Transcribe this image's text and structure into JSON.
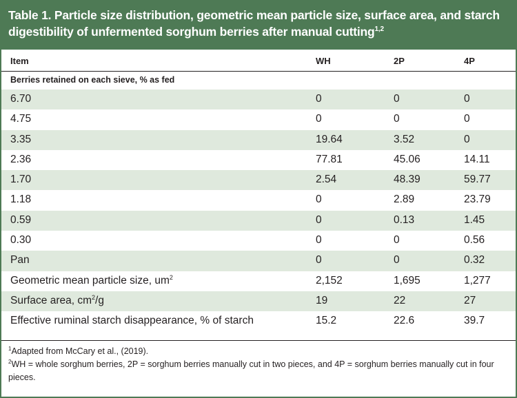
{
  "title": {
    "text": "Table 1. Particle size distribution, geometric mean particle size, surface area, and starch digestibility of unfermented sorghum berries after manual cutting",
    "superscript": "1,2"
  },
  "columns": {
    "item": "Item",
    "wh": "WH",
    "p2": "2P",
    "p4": "4P"
  },
  "section": "Berries retained on each sieve, % as fed",
  "rows": [
    {
      "item": "6.70",
      "wh": "0",
      "p2": "0",
      "p4": "0"
    },
    {
      "item": "4.75",
      "wh": "0",
      "p2": "0",
      "p4": "0"
    },
    {
      "item": "3.35",
      "wh": "19.64",
      "p2": "3.52",
      "p4": "0"
    },
    {
      "item": "2.36",
      "wh": "77.81",
      "p2": "45.06",
      "p4": "14.11"
    },
    {
      "item": "1.70",
      "wh": "2.54",
      "p2": "48.39",
      "p4": "59.77"
    },
    {
      "item": "1.18",
      "wh": "0",
      "p2": "2.89",
      "p4": "23.79"
    },
    {
      "item": "0.59",
      "wh": "0",
      "p2": "0.13",
      "p4": "1.45"
    },
    {
      "item": "0.30",
      "wh": "0",
      "p2": "0",
      "p4": "0.56"
    },
    {
      "item": "Pan",
      "wh": "0",
      "p2": "0",
      "p4": "0.32"
    },
    {
      "item": "Geometric mean particle size, um",
      "item_sup": "2",
      "wh": "2,152",
      "p2": "1,695",
      "p4": "1,277"
    },
    {
      "item": "Surface area, cm",
      "item_sup": "2",
      "item_suffix": "/g",
      "wh": "19",
      "p2": "22",
      "p4": "27"
    },
    {
      "item": "Effective ruminal starch disappearance, % of starch",
      "wh": "15.2",
      "p2": "22.6",
      "p4": "39.7"
    }
  ],
  "footnotes": [
    {
      "mark": "1",
      "text": "Adapted from McCary et al., (2019)."
    },
    {
      "mark": "2",
      "text": "WH = whole sorghum berries, 2P = sorghum berries manually cut in two pieces, and 4P = sorghum berries manually cut in four pieces."
    }
  ],
  "colors": {
    "header_green": "#4e7a55",
    "row_shade": "#dfe9dd",
    "text": "#231f20"
  }
}
